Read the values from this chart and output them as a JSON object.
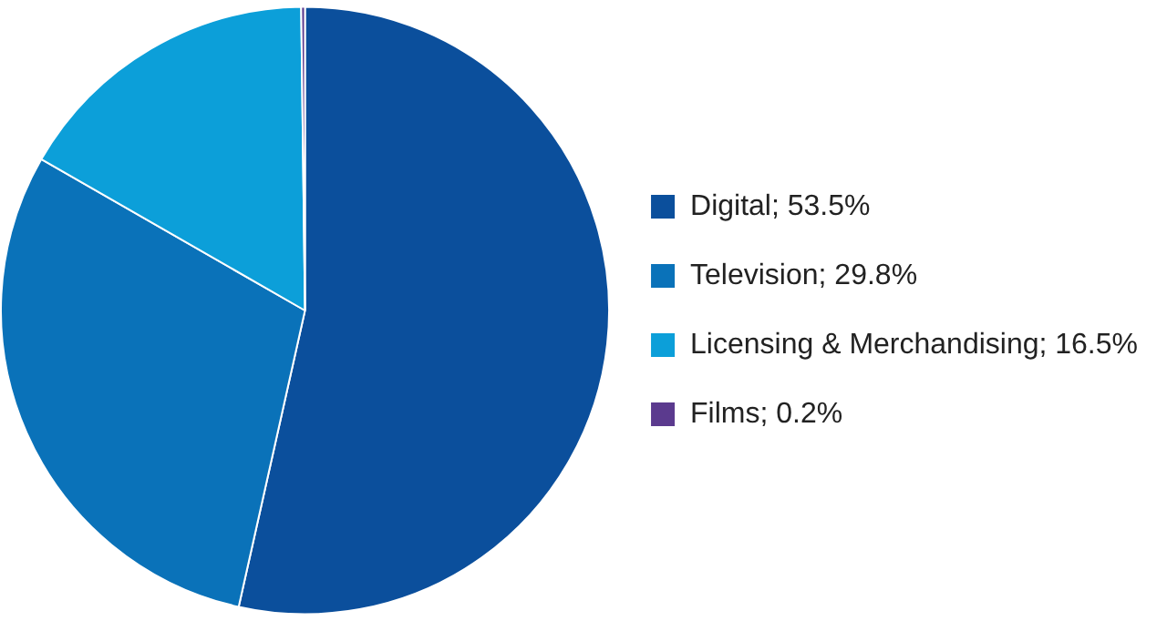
{
  "chart_data": {
    "type": "pie",
    "categories": [
      "Digital; 53.5%",
      "Television; 29.8%",
      "Licensing & Merchandising; 16.5%",
      "Films; 0.2%"
    ],
    "values": [
      53.5,
      29.8,
      16.5,
      0.2
    ],
    "colors": [
      "#0b4f9c",
      "#0a72b9",
      "#0c9fd9",
      "#5b3a8e"
    ],
    "legend": "right"
  }
}
